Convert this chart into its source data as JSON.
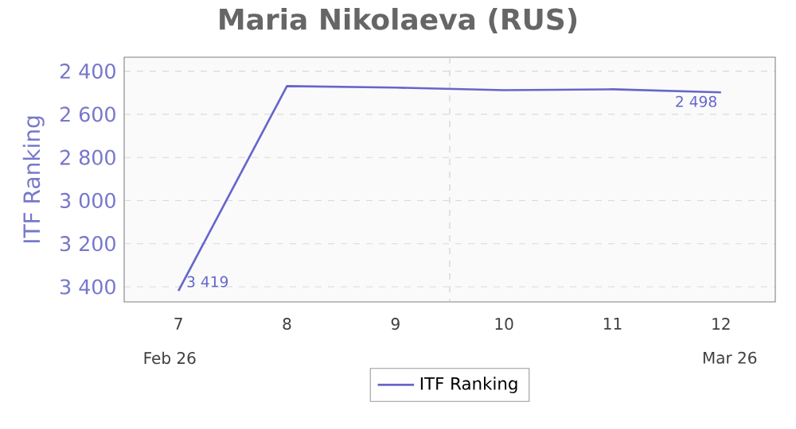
{
  "chart_data": {
    "type": "line",
    "title": "Maria Nikolaeva (RUS)",
    "ylabel": "ITF Ranking",
    "x": [
      7,
      8,
      9,
      10,
      11,
      12
    ],
    "xlim": [
      6.5,
      12.5
    ],
    "xticks": [
      7,
      8,
      9,
      10,
      11,
      12
    ],
    "ylim": [
      3470,
      2335
    ],
    "yticks": [
      {
        "value": 2400,
        "label": "2 400"
      },
      {
        "value": 2600,
        "label": "2 600"
      },
      {
        "value": 2800,
        "label": "2 800"
      },
      {
        "value": 3000,
        "label": "3 000"
      },
      {
        "value": 3200,
        "label": "3 200"
      },
      {
        "value": 3400,
        "label": "3 400"
      }
    ],
    "series": [
      {
        "name": "ITF Ranking",
        "color": "#6666cc",
        "values": [
          3419,
          2469,
          2476,
          2488,
          2484,
          2498
        ],
        "value_labels": [
          "3 419",
          null,
          null,
          null,
          null,
          "2 498"
        ]
      }
    ],
    "ref_lines": [
      {
        "axis": "x",
        "value": 9.5,
        "color": "#cccccc",
        "line_style": "dashed"
      }
    ],
    "annotations": [
      "Feb 26",
      "Mar 26"
    ],
    "grid": "y",
    "legend": "bottom",
    "marker": "none",
    "line_style": "solid"
  }
}
